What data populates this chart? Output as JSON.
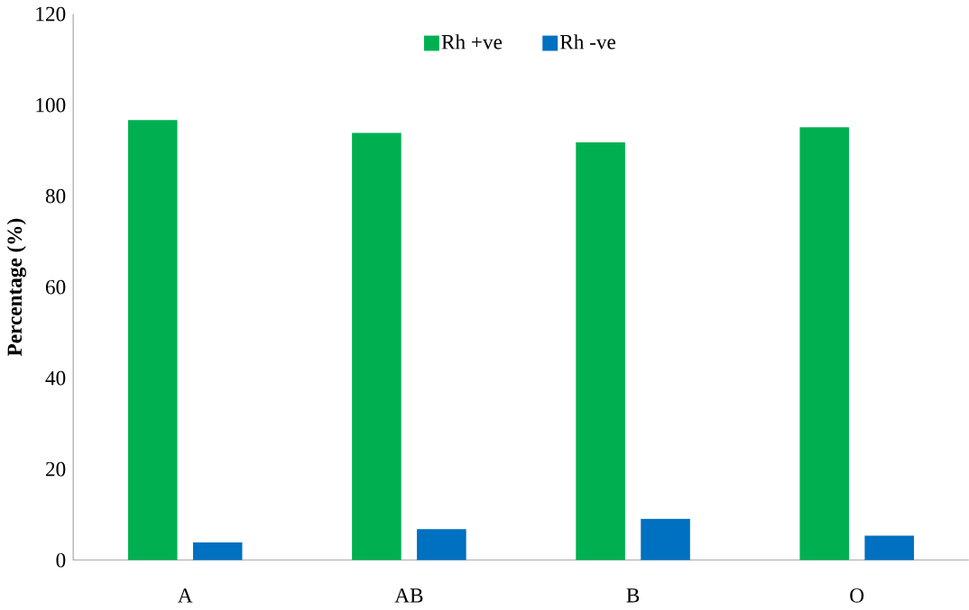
{
  "chart_data": {
    "type": "bar",
    "ylabel": "Percentage (%)",
    "categories": [
      "A",
      "AB",
      "B",
      "O"
    ],
    "series": [
      {
        "name": "Rh +ve",
        "color": "#00b050",
        "values": [
          96.7,
          93.9,
          91.8,
          95.1
        ]
      },
      {
        "name": "Rh -ve",
        "color": "#0070c0",
        "values": [
          3.9,
          6.8,
          9.1,
          5.4
        ]
      }
    ],
    "ylim": [
      0,
      120
    ],
    "yticks": [
      0,
      20,
      40,
      60,
      80,
      100,
      120
    ],
    "grid": false,
    "legend": "top"
  }
}
